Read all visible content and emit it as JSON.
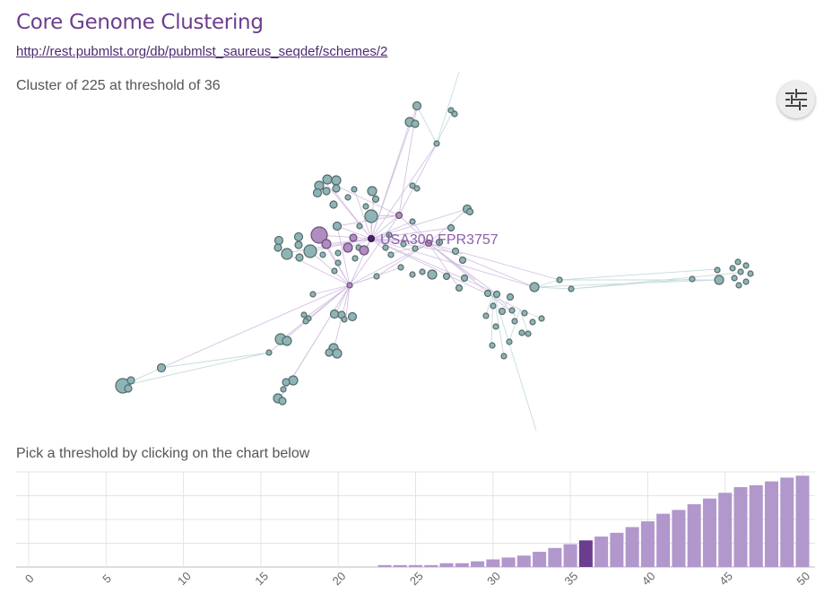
{
  "page": {
    "title": "Core Genome Clustering",
    "scheme_url": "http://rest.pubmlst.org/db/pubmlst_saureus_seqdef/schemes/2",
    "cluster_info": "Cluster of 225 at threshold of 36",
    "threshold_prompt": "Pick a threshold by clicking on the chart below"
  },
  "network": {
    "focus_label": "USA300 FPR3757",
    "colors": {
      "node": "#8fb4b5",
      "node_highlight": "#b08cbf",
      "focus_node": "#4b2069",
      "edge_purple": "#c8b3d9",
      "edge_teal": "#b9d3d3"
    }
  },
  "settings": {
    "icon": "sliders-icon"
  },
  "chart_data": {
    "type": "bar",
    "x": [
      0,
      1,
      2,
      3,
      4,
      5,
      6,
      7,
      8,
      9,
      10,
      11,
      12,
      13,
      14,
      15,
      16,
      17,
      18,
      19,
      20,
      21,
      22,
      23,
      24,
      25,
      26,
      27,
      28,
      29,
      30,
      31,
      32,
      33,
      34,
      35,
      36,
      37,
      38,
      39,
      40,
      41,
      42,
      43,
      44,
      45,
      46,
      47,
      48,
      49,
      50
    ],
    "x_ticks": [
      "0",
      "5",
      "10",
      "15",
      "20",
      "25",
      "30",
      "35",
      "40",
      "45",
      "50"
    ],
    "values": [
      0,
      0,
      0,
      0,
      0,
      0,
      0,
      0,
      0,
      0,
      0,
      0,
      0,
      0,
      0,
      0,
      0,
      0,
      0,
      0,
      0,
      0,
      0,
      1,
      1,
      1,
      1,
      2,
      2,
      3,
      4,
      5,
      6,
      8,
      10,
      12,
      14,
      16,
      18,
      21,
      24,
      28,
      30,
      33,
      36,
      39,
      42,
      43,
      45,
      47,
      48
    ],
    "selected": 36,
    "ylim": [
      0,
      50
    ],
    "grid": true,
    "colors": {
      "bar": "#b197cc",
      "selected": "#6b3d8f"
    }
  }
}
